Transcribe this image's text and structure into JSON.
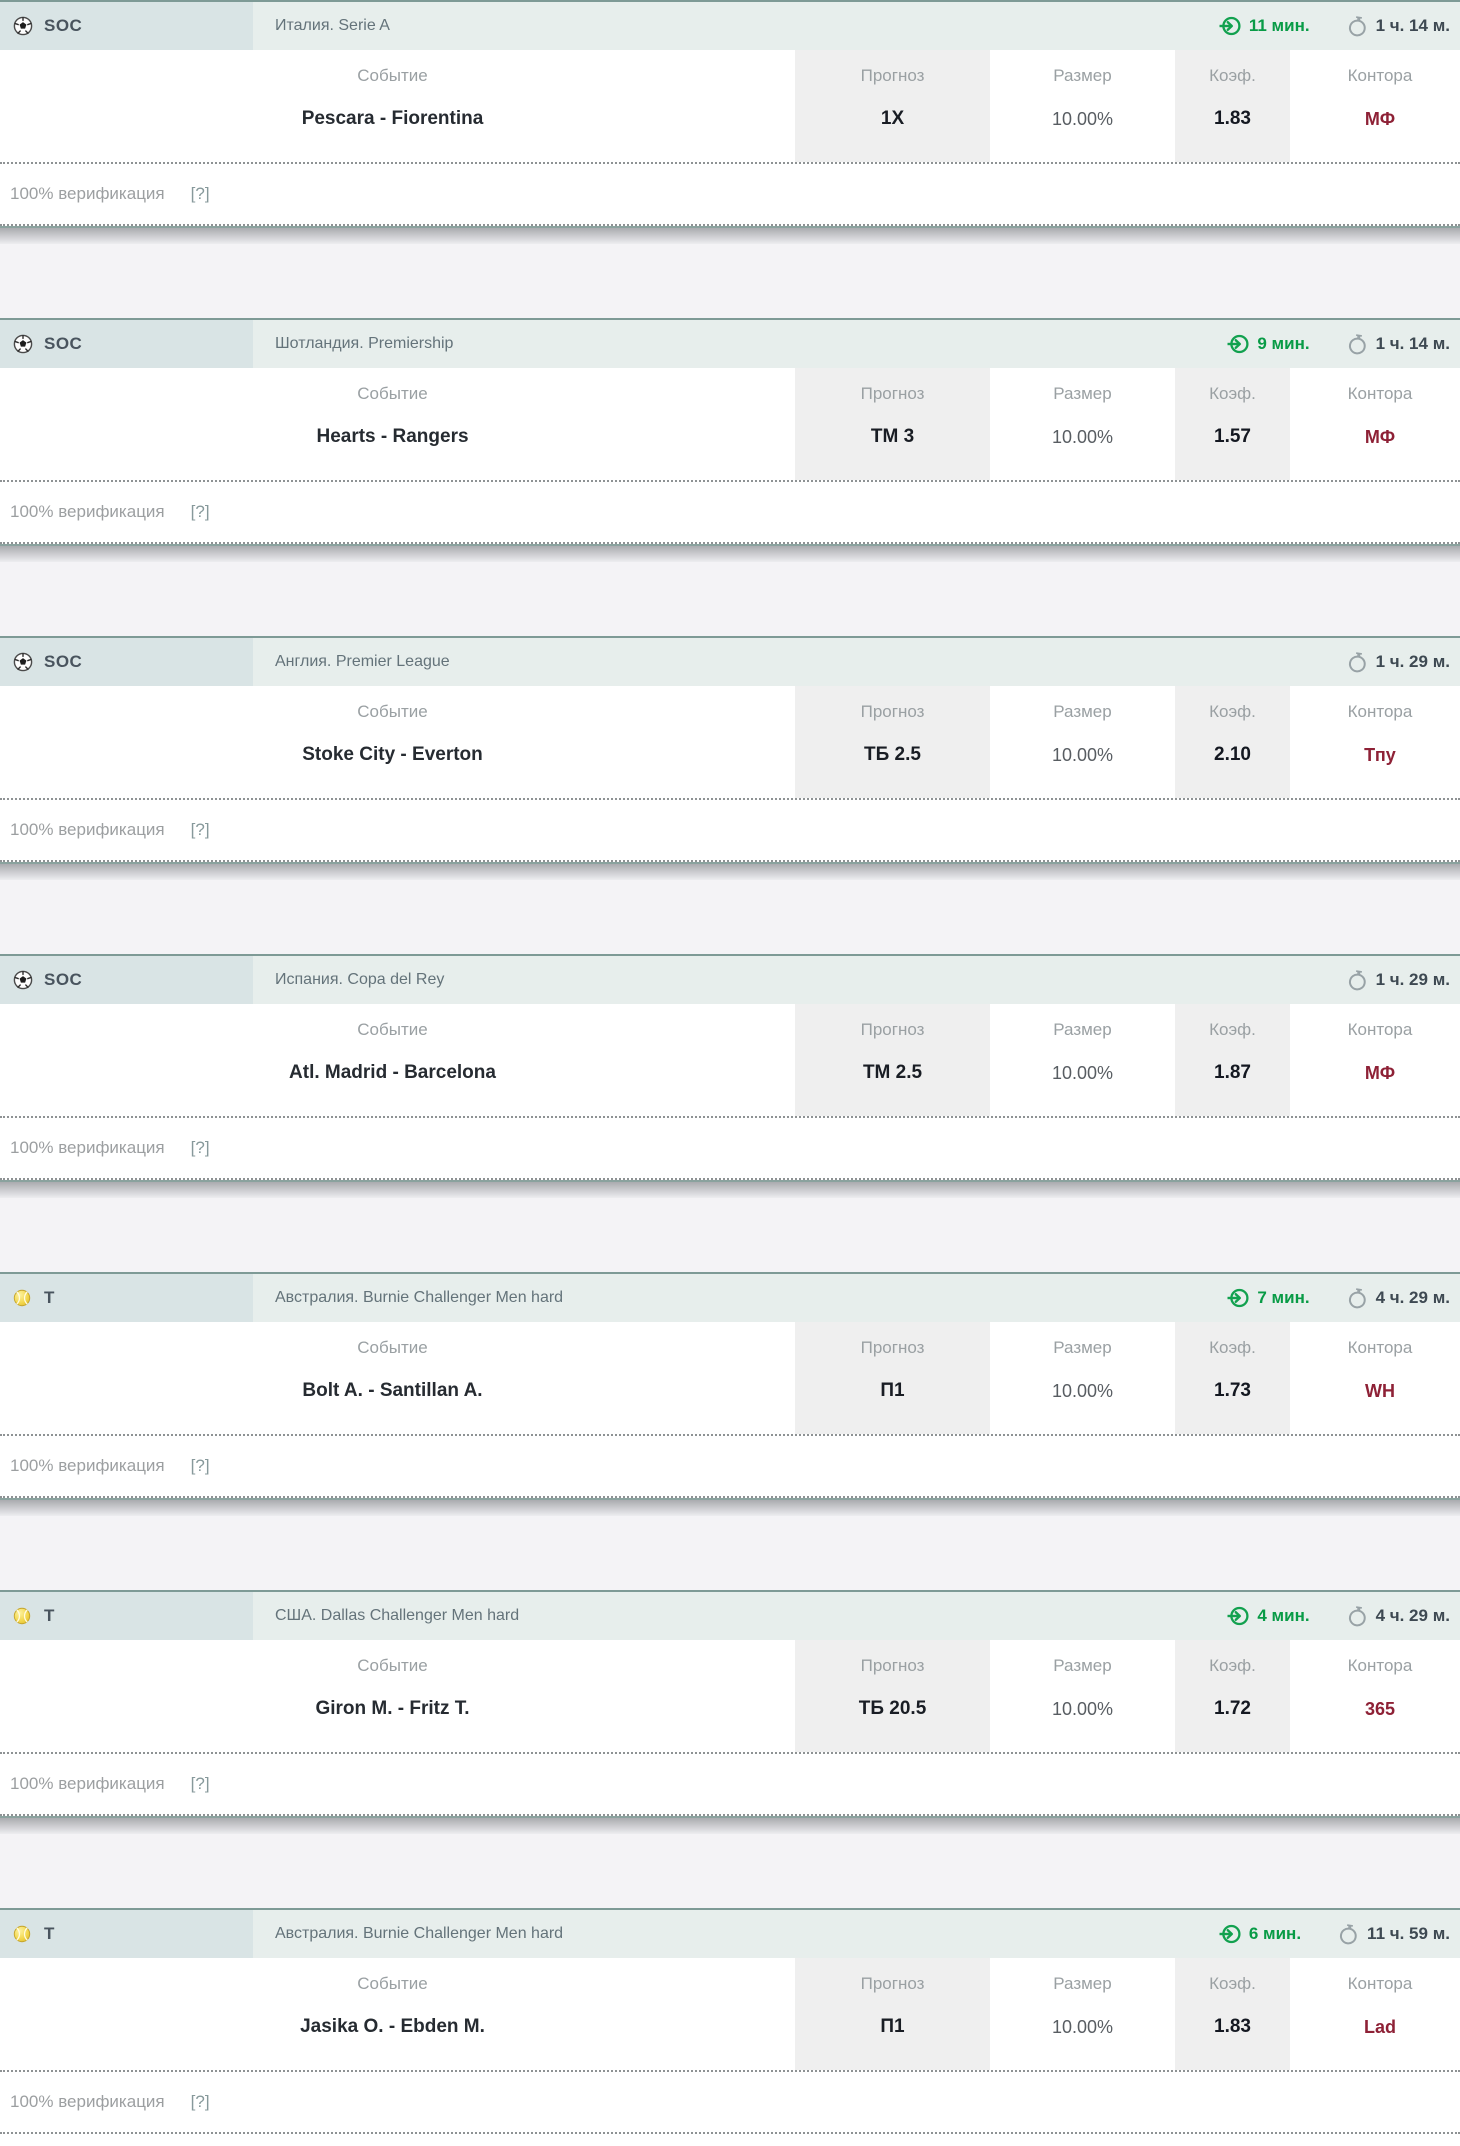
{
  "columns": {
    "event": "Событие",
    "forecast": "Прогноз",
    "size": "Размер",
    "odds": "Коэф.",
    "bookie": "Контора"
  },
  "verification": {
    "label": "100% верификация",
    "help": "[?]"
  },
  "colors": {
    "accent_green": "#089b46",
    "bookie_red": "#8e2136",
    "header_bg": "#e7eeec",
    "sport_cell_bg": "#d9e4e5",
    "column_stripe": "#efefef"
  },
  "cards": [
    {
      "sport_code": "SOC",
      "sport_type": "soccer",
      "league": "Италия. Serie A",
      "starts_in": "11 мин.",
      "time_left": "1 ч. 14 м.",
      "event": "Pescara - Fiorentina",
      "forecast": "1X",
      "size": "10.00%",
      "odds": "1.83",
      "bookie": "МФ"
    },
    {
      "sport_code": "SOC",
      "sport_type": "soccer",
      "league": "Шотландия. Premiership",
      "starts_in": "9 мин.",
      "time_left": "1 ч. 14 м.",
      "event": "Hearts - Rangers",
      "forecast": "ТМ 3",
      "size": "10.00%",
      "odds": "1.57",
      "bookie": "МФ"
    },
    {
      "sport_code": "SOC",
      "sport_type": "soccer",
      "league": "Англия. Premier League",
      "starts_in": null,
      "time_left": "1 ч. 29 м.",
      "event": "Stoke City - Everton",
      "forecast": "ТБ 2.5",
      "size": "10.00%",
      "odds": "2.10",
      "bookie": "Тпу"
    },
    {
      "sport_code": "SOC",
      "sport_type": "soccer",
      "league": "Испания. Copa del Rey",
      "starts_in": null,
      "time_left": "1 ч. 29 м.",
      "event": "Atl. Madrid - Barcelona",
      "forecast": "ТМ 2.5",
      "size": "10.00%",
      "odds": "1.87",
      "bookie": "МФ"
    },
    {
      "sport_code": "T",
      "sport_type": "tennis",
      "league": "Австралия. Burnie Challenger Men hard",
      "starts_in": "7 мин.",
      "time_left": "4 ч. 29 м.",
      "event": "Bolt A. - Santillan A.",
      "forecast": "П1",
      "size": "10.00%",
      "odds": "1.73",
      "bookie": "WH"
    },
    {
      "sport_code": "T",
      "sport_type": "tennis",
      "league": "США. Dallas Challenger Men hard",
      "starts_in": "4 мин.",
      "time_left": "4 ч. 29 м.",
      "event": "Giron M. - Fritz T.",
      "forecast": "ТБ 20.5",
      "size": "10.00%",
      "odds": "1.72",
      "bookie": "365"
    },
    {
      "sport_code": "T",
      "sport_type": "tennis",
      "league": "Австралия. Burnie Challenger Men hard",
      "starts_in": "6 мин.",
      "time_left": "11 ч. 59 м.",
      "event": "Jasika O. - Ebden M.",
      "forecast": "П1",
      "size": "10.00%",
      "odds": "1.83",
      "bookie": "Lad"
    }
  ]
}
